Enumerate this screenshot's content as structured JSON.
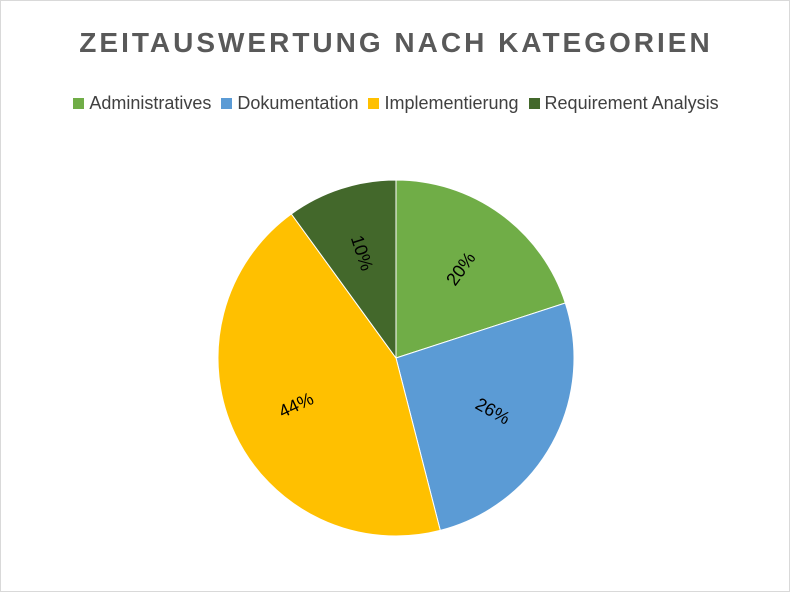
{
  "chart_data": {
    "type": "pie",
    "title": "ZEITAUSWERTUNG NACH KATEGORIEN",
    "legend_position": "top",
    "categories": [
      "Administratives",
      "Dokumentation",
      "Implementierung",
      "Requirement Analysis"
    ],
    "values": [
      20,
      26,
      44,
      10
    ],
    "labels": [
      "20%",
      "26%",
      "44%",
      "10%"
    ],
    "colors": [
      "#70ad47",
      "#5b9bd5",
      "#ffc000",
      "#43682b"
    ]
  }
}
